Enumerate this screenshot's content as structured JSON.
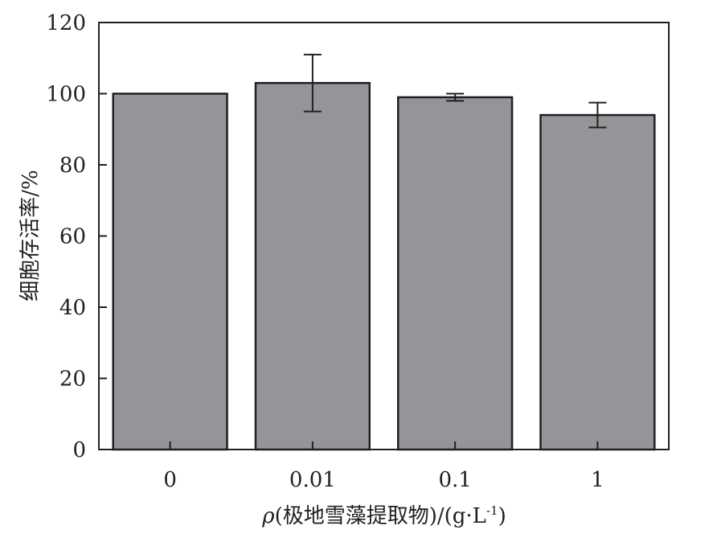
{
  "chart_data": {
    "type": "bar",
    "categories": [
      "0",
      "0.01",
      "0.1",
      "1"
    ],
    "values": [
      100,
      103,
      99,
      94
    ],
    "error": [
      0,
      8,
      1,
      3.5
    ],
    "ylim": [
      0,
      120
    ],
    "yticks": [
      "0",
      "20",
      "40",
      "60",
      "80",
      "100",
      "120"
    ],
    "ylabel": "细胞存活率/%",
    "xlabel": {
      "symbol": "ρ",
      "main": "(极地雪藻提取物)/(g·L",
      "sup": "-1",
      "end": ")"
    },
    "bar_color": "#939598",
    "edge_color": "#231f20",
    "grid": false
  }
}
